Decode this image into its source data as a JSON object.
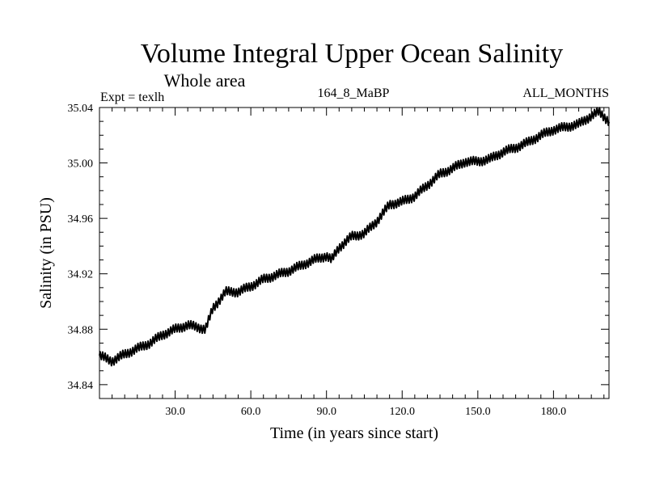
{
  "chart_data": {
    "type": "line",
    "title": "Volume Integral Upper Ocean Salinity",
    "subtitle": "Whole area",
    "left_label": "Expt = texlh",
    "center_label": "164_8_MaBP",
    "right_label": "ALL_MONTHS",
    "xlabel": "Time (in years since start)",
    "ylabel": "Salinity (in PSU)",
    "xlim": [
      0,
      202
    ],
    "ylim": [
      34.83,
      35.04
    ],
    "x_ticks": [
      30,
      60,
      90,
      120,
      150,
      180
    ],
    "x_tick_labels": [
      "30.0",
      "60.0",
      "90.0",
      "120.0",
      "150.0",
      "180.0"
    ],
    "y_ticks": [
      34.84,
      34.88,
      34.92,
      34.96,
      35.0,
      35.04
    ],
    "y_tick_labels": [
      "34.84",
      "34.88",
      "34.92",
      "34.96",
      "35.00",
      "35.04"
    ],
    "series": [
      {
        "name": "Salinity",
        "x": [
          0,
          5,
          10,
          15,
          20,
          25,
          30,
          35,
          40,
          42,
          45,
          50,
          55,
          60,
          65,
          70,
          75,
          80,
          85,
          90,
          92,
          95,
          100,
          105,
          110,
          115,
          120,
          125,
          130,
          135,
          140,
          145,
          150,
          155,
          160,
          165,
          170,
          175,
          180,
          185,
          190,
          195,
          198,
          202
        ],
        "y": [
          34.861,
          34.857,
          34.862,
          34.866,
          34.87,
          34.876,
          34.88,
          34.883,
          34.881,
          34.88,
          34.895,
          34.907,
          34.907,
          34.911,
          34.916,
          34.919,
          34.922,
          34.926,
          34.93,
          34.933,
          34.93,
          34.939,
          34.947,
          34.949,
          34.958,
          34.97,
          34.972,
          34.976,
          34.984,
          34.992,
          34.996,
          35.001,
          35.001,
          35.003,
          35.008,
          35.011,
          35.015,
          35.02,
          35.024,
          35.026,
          35.028,
          35.034,
          35.037,
          35.03
        ]
      }
    ]
  }
}
